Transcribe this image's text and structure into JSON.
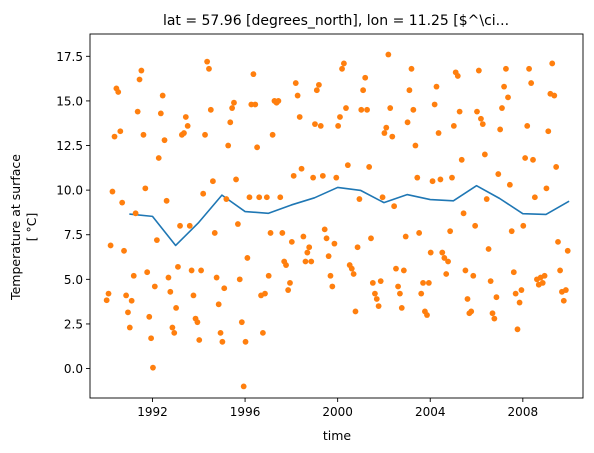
{
  "chart_data": {
    "type": "line+scatter",
    "title": "lat = 57.96 [degrees_north], lon = 11.25 [$^\\ci...",
    "xlabel": "time",
    "ylabel_line1": "Temperature at surface",
    "ylabel_line2": "[ °C]",
    "xlim": [
      1989.3,
      2010.6
    ],
    "ylim": [
      -1.65,
      18.75
    ],
    "x_ticks": [
      1992,
      1996,
      2000,
      2004,
      2008
    ],
    "x_tick_labels": [
      "1992",
      "1996",
      "2000",
      "2004",
      "2008"
    ],
    "y_ticks": [
      0,
      2.5,
      5,
      7.5,
      10,
      12.5,
      15,
      17.5
    ],
    "y_tick_labels": [
      "0.0",
      "2.5",
      "5.0",
      "7.5",
      "10.0",
      "12.5",
      "15.0",
      "17.5"
    ],
    "grid": false,
    "series": [
      {
        "kind": "line",
        "color": "#1f77b4",
        "x": [
          1991.0,
          1992.0,
          1993.0,
          1994.0,
          1995.0,
          1996.0,
          1997.0,
          1998.0,
          1999.0,
          2000.0,
          2001.0,
          2002.0,
          2003.0,
          2004.0,
          2005.0,
          2006.0,
          2007.0,
          2008.0,
          2009.0,
          2010.0
        ],
        "values": [
          8.66,
          8.53,
          6.9,
          8.19,
          9.72,
          8.8,
          8.7,
          9.17,
          9.57,
          10.15,
          9.98,
          9.3,
          9.75,
          9.47,
          9.4,
          10.25,
          9.53,
          8.68,
          8.64,
          9.38
        ]
      },
      {
        "kind": "scatter",
        "color": "#ff7f0e",
        "points": [
          [
            1990.02,
            3.83
          ],
          [
            1990.1,
            4.2
          ],
          [
            1990.19,
            6.9
          ],
          [
            1990.27,
            9.92
          ],
          [
            1990.36,
            13.0
          ],
          [
            1990.44,
            15.7
          ],
          [
            1990.52,
            15.5
          ],
          [
            1990.61,
            13.3
          ],
          [
            1990.69,
            9.3
          ],
          [
            1990.77,
            6.6
          ],
          [
            1990.86,
            4.1
          ],
          [
            1990.94,
            3.15
          ],
          [
            1991.02,
            2.3
          ],
          [
            1991.1,
            3.8
          ],
          [
            1991.19,
            5.2
          ],
          [
            1991.27,
            8.7
          ],
          [
            1991.36,
            14.4
          ],
          [
            1991.44,
            16.2
          ],
          [
            1991.52,
            16.7
          ],
          [
            1991.61,
            13.1
          ],
          [
            1991.69,
            10.1
          ],
          [
            1991.77,
            5.4
          ],
          [
            1991.86,
            2.9
          ],
          [
            1991.94,
            1.7
          ],
          [
            1992.02,
            0.05
          ],
          [
            1992.1,
            4.6
          ],
          [
            1992.19,
            7.2
          ],
          [
            1992.27,
            11.8
          ],
          [
            1992.36,
            14.3
          ],
          [
            1992.44,
            15.3
          ],
          [
            1992.52,
            12.8
          ],
          [
            1992.61,
            9.4
          ],
          [
            1992.69,
            5.1
          ],
          [
            1992.77,
            4.3
          ],
          [
            1992.86,
            2.3
          ],
          [
            1992.94,
            2.0
          ],
          [
            1993.02,
            3.4
          ],
          [
            1993.1,
            5.7
          ],
          [
            1993.19,
            8.0
          ],
          [
            1993.27,
            13.1
          ],
          [
            1993.36,
            13.2
          ],
          [
            1993.44,
            14.1
          ],
          [
            1993.52,
            13.6
          ],
          [
            1993.61,
            8.0
          ],
          [
            1993.69,
            5.5
          ],
          [
            1993.77,
            4.1
          ],
          [
            1993.86,
            2.8
          ],
          [
            1993.94,
            2.6
          ],
          [
            1994.02,
            1.6
          ],
          [
            1994.1,
            5.5
          ],
          [
            1994.19,
            9.8
          ],
          [
            1994.27,
            13.1
          ],
          [
            1994.36,
            17.2
          ],
          [
            1994.44,
            16.8
          ],
          [
            1994.52,
            14.5
          ],
          [
            1994.61,
            10.5
          ],
          [
            1994.69,
            7.6
          ],
          [
            1994.77,
            5.1
          ],
          [
            1994.86,
            3.6
          ],
          [
            1994.94,
            2.0
          ],
          [
            1995.02,
            1.5
          ],
          [
            1995.1,
            4.5
          ],
          [
            1995.19,
            9.5
          ],
          [
            1995.27,
            12.5
          ],
          [
            1995.36,
            13.8
          ],
          [
            1995.44,
            14.6
          ],
          [
            1995.52,
            14.9
          ],
          [
            1995.61,
            10.6
          ],
          [
            1995.69,
            8.1
          ],
          [
            1995.77,
            5.0
          ],
          [
            1995.86,
            2.6
          ],
          [
            1995.94,
            -1.0
          ],
          [
            1996.02,
            1.5
          ],
          [
            1996.1,
            6.2
          ],
          [
            1996.19,
            9.6
          ],
          [
            1996.27,
            14.8
          ],
          [
            1996.36,
            16.5
          ],
          [
            1996.44,
            14.8
          ],
          [
            1996.52,
            12.4
          ],
          [
            1996.61,
            9.6
          ],
          [
            1996.69,
            4.1
          ],
          [
            1996.77,
            2.0
          ],
          [
            1996.86,
            4.2
          ],
          [
            1996.94,
            9.6
          ],
          [
            1997.02,
            5.2
          ],
          [
            1997.1,
            7.6
          ],
          [
            1997.19,
            13.1
          ],
          [
            1997.27,
            15.0
          ],
          [
            1997.36,
            14.9
          ],
          [
            1997.44,
            15.0
          ],
          [
            1997.52,
            9.6
          ],
          [
            1997.61,
            7.6
          ],
          [
            1997.69,
            6.0
          ],
          [
            1997.77,
            5.8
          ],
          [
            1997.86,
            4.4
          ],
          [
            1997.94,
            4.8
          ],
          [
            1998.02,
            7.1
          ],
          [
            1998.1,
            10.8
          ],
          [
            1998.19,
            16.0
          ],
          [
            1998.27,
            15.3
          ],
          [
            1998.36,
            14.1
          ],
          [
            1998.44,
            11.2
          ],
          [
            1998.52,
            7.4
          ],
          [
            1998.61,
            6.0
          ],
          [
            1998.69,
            6.5
          ],
          [
            1998.77,
            6.8
          ],
          [
            1998.86,
            6.0
          ],
          [
            1998.94,
            10.7
          ],
          [
            1999.02,
            13.7
          ],
          [
            1999.1,
            15.6
          ],
          [
            1999.19,
            15.9
          ],
          [
            1999.27,
            13.6
          ],
          [
            1999.36,
            10.8
          ],
          [
            1999.44,
            7.8
          ],
          [
            1999.52,
            7.3
          ],
          [
            1999.61,
            6.3
          ],
          [
            1999.69,
            5.2
          ],
          [
            1999.77,
            4.6
          ],
          [
            1999.86,
            7.0
          ],
          [
            1999.94,
            10.7
          ],
          [
            2000.02,
            13.6
          ],
          [
            2000.1,
            14.1
          ],
          [
            2000.19,
            16.8
          ],
          [
            2000.27,
            17.1
          ],
          [
            2000.36,
            14.6
          ],
          [
            2000.44,
            11.4
          ],
          [
            2000.52,
            5.8
          ],
          [
            2000.61,
            5.6
          ],
          [
            2000.69,
            5.3
          ],
          [
            2000.77,
            3.2
          ],
          [
            2000.86,
            6.8
          ],
          [
            2000.94,
            9.5
          ],
          [
            2001.02,
            14.5
          ],
          [
            2001.1,
            15.6
          ],
          [
            2001.19,
            16.3
          ],
          [
            2001.27,
            14.5
          ],
          [
            2001.36,
            11.3
          ],
          [
            2001.44,
            7.3
          ],
          [
            2001.52,
            4.8
          ],
          [
            2001.61,
            4.2
          ],
          [
            2001.69,
            3.9
          ],
          [
            2001.77,
            3.5
          ],
          [
            2001.86,
            4.9
          ],
          [
            2001.94,
            9.6
          ],
          [
            2002.02,
            13.2
          ],
          [
            2002.1,
            13.5
          ],
          [
            2002.19,
            17.6
          ],
          [
            2002.27,
            14.6
          ],
          [
            2002.36,
            13.0
          ],
          [
            2002.44,
            9.1
          ],
          [
            2002.52,
            5.6
          ],
          [
            2002.61,
            4.6
          ],
          [
            2002.69,
            4.2
          ],
          [
            2002.77,
            3.4
          ],
          [
            2002.86,
            5.5
          ],
          [
            2002.94,
            7.4
          ],
          [
            2003.02,
            13.8
          ],
          [
            2003.1,
            15.6
          ],
          [
            2003.19,
            16.8
          ],
          [
            2003.27,
            14.5
          ],
          [
            2003.36,
            12.5
          ],
          [
            2003.44,
            10.7
          ],
          [
            2003.52,
            7.6
          ],
          [
            2003.61,
            4.2
          ],
          [
            2003.69,
            4.8
          ],
          [
            2003.77,
            3.2
          ],
          [
            2003.86,
            3.0
          ],
          [
            2003.94,
            4.8
          ],
          [
            2004.02,
            6.5
          ],
          [
            2004.1,
            10.5
          ],
          [
            2004.19,
            14.8
          ],
          [
            2004.27,
            15.8
          ],
          [
            2004.36,
            13.2
          ],
          [
            2004.44,
            10.6
          ],
          [
            2004.52,
            6.5
          ],
          [
            2004.61,
            6.2
          ],
          [
            2004.69,
            5.3
          ],
          [
            2004.77,
            6.0
          ],
          [
            2004.86,
            7.7
          ],
          [
            2004.94,
            10.7
          ],
          [
            2005.02,
            13.6
          ],
          [
            2005.1,
            16.6
          ],
          [
            2005.19,
            16.4
          ],
          [
            2005.27,
            14.4
          ],
          [
            2005.36,
            11.7
          ],
          [
            2005.44,
            8.7
          ],
          [
            2005.52,
            5.5
          ],
          [
            2005.61,
            3.9
          ],
          [
            2005.69,
            3.1
          ],
          [
            2005.77,
            3.2
          ],
          [
            2005.86,
            5.2
          ],
          [
            2005.94,
            8.0
          ],
          [
            2006.02,
            14.4
          ],
          [
            2006.1,
            16.7
          ],
          [
            2006.19,
            14.0
          ],
          [
            2006.27,
            13.7
          ],
          [
            2006.36,
            12.0
          ],
          [
            2006.44,
            9.5
          ],
          [
            2006.52,
            6.7
          ],
          [
            2006.61,
            4.9
          ],
          [
            2006.69,
            3.1
          ],
          [
            2006.77,
            2.8
          ],
          [
            2006.86,
            4.0
          ],
          [
            2006.94,
            10.9
          ],
          [
            2007.02,
            13.4
          ],
          [
            2007.1,
            14.6
          ],
          [
            2007.19,
            15.8
          ],
          [
            2007.27,
            16.8
          ],
          [
            2007.36,
            15.2
          ],
          [
            2007.44,
            10.3
          ],
          [
            2007.52,
            7.7
          ],
          [
            2007.61,
            5.4
          ],
          [
            2007.69,
            4.2
          ],
          [
            2007.77,
            2.2
          ],
          [
            2007.86,
            3.7
          ],
          [
            2007.94,
            4.4
          ],
          [
            2008.02,
            8.0
          ],
          [
            2008.1,
            11.8
          ],
          [
            2008.19,
            13.6
          ],
          [
            2008.27,
            16.8
          ],
          [
            2008.36,
            16.0
          ],
          [
            2008.44,
            11.7
          ],
          [
            2008.52,
            9.6
          ],
          [
            2008.61,
            5.0
          ],
          [
            2008.69,
            4.7
          ],
          [
            2008.77,
            5.1
          ],
          [
            2008.86,
            4.8
          ],
          [
            2008.94,
            5.2
          ],
          [
            2009.02,
            10.1
          ],
          [
            2009.1,
            13.3
          ],
          [
            2009.19,
            15.4
          ],
          [
            2009.27,
            17.1
          ],
          [
            2009.36,
            15.3
          ],
          [
            2009.44,
            11.3
          ],
          [
            2009.52,
            7.1
          ],
          [
            2009.61,
            5.5
          ],
          [
            2009.69,
            4.3
          ],
          [
            2009.77,
            3.8
          ],
          [
            2009.86,
            4.4
          ],
          [
            2009.94,
            6.6
          ]
        ]
      }
    ]
  }
}
